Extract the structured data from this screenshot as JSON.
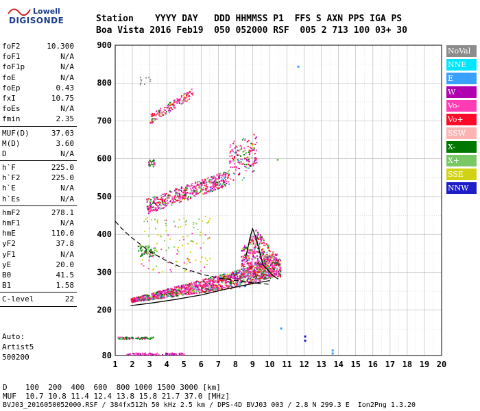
{
  "logo": {
    "line1": "Lowell",
    "line2": "DIGISONDE"
  },
  "header": {
    "row1": "Station    YYYY DAY   DDD HHMMSS P1  FFS S AXN PPS IGA PS",
    "row2": "Boa Vista 2016 Feb19  050 052000 RSF  005 2 713 100 03+ 30"
  },
  "params_groups": [
    [
      [
        "foF2",
        "10.300"
      ],
      [
        "foF1",
        "N/A"
      ],
      [
        "foF1p",
        "N/A"
      ],
      [
        "foE",
        "N/A"
      ],
      [
        "foEp",
        "0.43"
      ],
      [
        "fxI",
        "10.75"
      ],
      [
        "foEs",
        "N/A"
      ],
      [
        "fmin",
        "2.35"
      ]
    ],
    [
      [
        "MUF(D)",
        "37.03"
      ],
      [
        "M(D)",
        "3.60"
      ],
      [
        "D",
        "N/A"
      ]
    ],
    [
      [
        "h`F",
        "225.0"
      ],
      [
        "h`F2",
        "225.0"
      ],
      [
        "h`E",
        "N/A"
      ],
      [
        "h`Es",
        "N/A"
      ]
    ],
    [
      [
        "hmF2",
        "278.1"
      ],
      [
        "hmF1",
        "N/A"
      ],
      [
        "hmE",
        "110.0"
      ],
      [
        "yF2",
        "37.8"
      ],
      [
        "yF1",
        "N/A"
      ],
      [
        "yE",
        "20.0"
      ],
      [
        "B0",
        "41.5"
      ],
      [
        "B1",
        "1.58"
      ]
    ],
    [
      [
        "C-level",
        "22"
      ]
    ]
  ],
  "autoscale": {
    "line1": "Auto:",
    "line2": "Artist5",
    "line3": "500200"
  },
  "legend": [
    {
      "label": "NoVal",
      "color": "#8c8c8c"
    },
    {
      "label": "NNE",
      "color": "#00e6ff"
    },
    {
      "label": "E",
      "color": "#39a0ff"
    },
    {
      "label": "W",
      "color": "#b000b0"
    },
    {
      "label": "Vo-",
      "color": "#ff3cb4"
    },
    {
      "label": "Vo+",
      "color": "#ff0a28"
    },
    {
      "label": "SSW",
      "color": "#ffb4b4"
    },
    {
      "label": "X-",
      "color": "#007800"
    },
    {
      "label": "X+",
      "color": "#78c864"
    },
    {
      "label": "SSE",
      "color": "#d2d214"
    },
    {
      "label": "NNW",
      "color": "#1e1ec8"
    }
  ],
  "bottom": {
    "line1": "D    100  200  400  600  800 1000 1500 3000 [km]",
    "line2": "MUF  10.7 10.8 11.4 12.4 13.8 15.8 21.7 37.0 [MHz]",
    "line3": "BVJ03_2016050052000.RSF / 384fx512h 50 kHz 2.5 km / DPS-4D BVJ03 003 / 2.8 N 299.3 E  Ion2Png 1.3.20"
  },
  "chart_data": {
    "type": "scatter",
    "xlabel": "",
    "ylabel": "",
    "xlim": [
      1,
      20
    ],
    "ylim": [
      80,
      900
    ],
    "xticks": [
      1,
      2,
      3,
      4,
      5,
      6,
      7,
      8,
      9,
      10,
      11,
      12,
      13,
      14,
      15,
      16,
      17,
      18,
      19,
      20
    ],
    "yticks": [
      80,
      200,
      300,
      400,
      500,
      600,
      700,
      800,
      900
    ],
    "grid": true,
    "traces": [
      {
        "name": "O-trace 1st hop",
        "hmin": 220,
        "hmax": 290,
        "xstart": 1.9,
        "xend": 10.4
      },
      {
        "name": "2nd hop",
        "xstart": 2.8,
        "xend": 9.2,
        "hstart": 450,
        "hend": 570
      },
      {
        "name": "3rd hop",
        "xstart": 3.0,
        "xend": 5.5,
        "hstart": 695,
        "hend": 770
      },
      {
        "name": "Es 2nd hop",
        "xstart": 2.9,
        "xend": 3.2,
        "h": 590
      },
      {
        "name": "low trace",
        "xstart": 1.1,
        "xend": 3.2,
        "h": 127
      },
      {
        "name": "bottom",
        "xstart": 1.6,
        "xend": 5.0,
        "h": 85
      }
    ],
    "profile_curve": [
      [
        1.9,
        212
      ],
      [
        3.0,
        218
      ],
      [
        4.5,
        228
      ],
      [
        6.0,
        240
      ],
      [
        7.5,
        256
      ],
      [
        9.0,
        270
      ],
      [
        10.0,
        278
      ]
    ],
    "profile_top": [
      [
        8.6,
        340
      ],
      [
        8.9,
        400
      ],
      [
        9.0,
        415
      ],
      [
        9.2,
        390
      ],
      [
        9.6,
        320
      ],
      [
        10.2,
        290
      ],
      [
        10.5,
        282
      ]
    ],
    "dashed_curve": [
      [
        1.0,
        435
      ],
      [
        1.5,
        410
      ],
      [
        2.0,
        390
      ],
      [
        3.0,
        355
      ],
      [
        4.0,
        330
      ],
      [
        5.0,
        310
      ],
      [
        6.0,
        295
      ],
      [
        7.0,
        285
      ],
      [
        8.0,
        278
      ],
      [
        9.0,
        272
      ],
      [
        10.0,
        268
      ]
    ],
    "isolated_points": [
      {
        "x": 11.6,
        "y": 846,
        "color": "#39a0ff"
      },
      {
        "x": 12.0,
        "y": 133,
        "color": "#1e1ec8"
      },
      {
        "x": 12.0,
        "y": 122,
        "color": "#1e1ec8"
      },
      {
        "x": 13.6,
        "y": 96,
        "color": "#39a0ff"
      },
      {
        "x": 13.6,
        "y": 88,
        "color": "#39a0ff"
      },
      {
        "x": 10.6,
        "y": 154,
        "color": "#39a0ff"
      },
      {
        "x": 10.4,
        "y": 600,
        "color": "#78c864"
      }
    ]
  }
}
